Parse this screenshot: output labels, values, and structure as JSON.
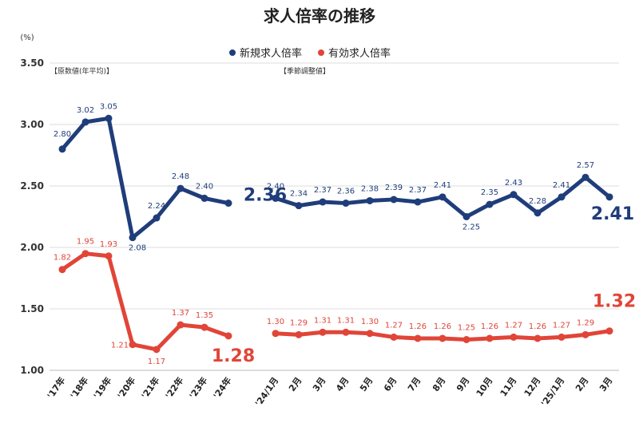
{
  "chart_data": {
    "type": "line",
    "title": "求人倍率の推移",
    "yunit": "(%)",
    "ylim": [
      1.0,
      3.5
    ],
    "yticks": [
      "1.00",
      "1.50",
      "2.00",
      "2.50",
      "3.00",
      "3.50"
    ],
    "grid": true,
    "legend_position": "top-center",
    "colors": {
      "new": "#1f3d7a",
      "effective": "#e04538"
    },
    "notes": [
      "【原数値(年平均)】",
      "【季節調整値】"
    ],
    "categories": [
      "'17年",
      "'18年",
      "'19年",
      "'20年",
      "'21年",
      "'22年",
      "'23年",
      "'24年",
      "'24/1月",
      "2月",
      "3月",
      "4月",
      "5月",
      "6月",
      "7月",
      "8月",
      "9月",
      "10月",
      "11月",
      "12月",
      "'25/1月",
      "2月",
      "3月"
    ],
    "segments": [
      [
        0,
        7
      ],
      [
        8,
        22
      ]
    ],
    "series": [
      {
        "name": "新規求人倍率",
        "values": [
          2.8,
          3.02,
          3.05,
          2.08,
          2.24,
          2.48,
          2.4,
          2.36,
          2.4,
          2.34,
          2.37,
          2.36,
          2.38,
          2.39,
          2.37,
          2.41,
          2.25,
          2.35,
          2.43,
          2.28,
          2.41,
          2.57,
          2.41
        ],
        "labels": [
          "2.80",
          "3.02",
          "3.05",
          "2.08",
          "2.24",
          "2.48",
          "2.40",
          "2.36",
          "2.40",
          "2.34",
          "2.37",
          "2.36",
          "2.38",
          "2.39",
          "2.37",
          "2.41",
          "2.25",
          "2.35",
          "2.43",
          "2.28",
          "2.41",
          "2.57",
          "2.41"
        ]
      },
      {
        "name": "有効求人倍率",
        "values": [
          1.82,
          1.95,
          1.93,
          1.21,
          1.17,
          1.37,
          1.35,
          1.28,
          1.3,
          1.29,
          1.31,
          1.31,
          1.3,
          1.27,
          1.26,
          1.26,
          1.25,
          1.26,
          1.27,
          1.26,
          1.27,
          1.29,
          1.32
        ],
        "labels": [
          "1.82",
          "1.95",
          "1.93",
          "1.21",
          "1.17",
          "1.37",
          "1.35",
          "1.28",
          "1.30",
          "1.29",
          "1.31",
          "1.31",
          "1.30",
          "1.27",
          "1.26",
          "1.26",
          "1.25",
          "1.26",
          "1.27",
          "1.26",
          "1.27",
          "1.29",
          "1.32"
        ]
      }
    ]
  }
}
